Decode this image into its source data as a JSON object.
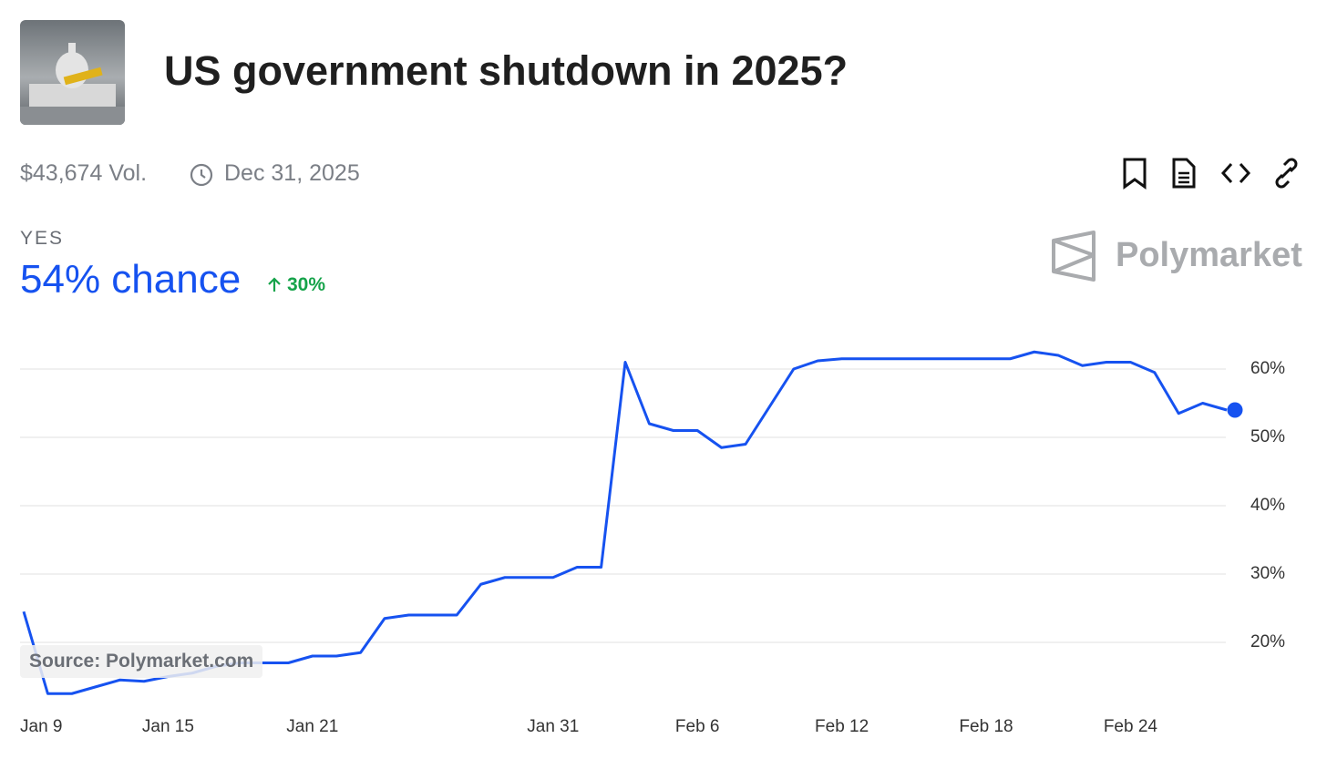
{
  "header": {
    "title": "US government shutdown in 2025?",
    "volume": "$43,674 Vol.",
    "end_date": "Dec 31, 2025",
    "outcome": "YES",
    "chance": "54% chance",
    "change": "30%",
    "brand": "Polymarket",
    "source": "Source: Polymarket.com"
  },
  "chart_data": {
    "type": "line",
    "categories": [
      "Jan 9",
      "Jan 10",
      "Jan 11",
      "Jan 12",
      "Jan 13",
      "Jan 14",
      "Jan 15",
      "Jan 16",
      "Jan 17",
      "Jan 18",
      "Jan 19",
      "Jan 20",
      "Jan 21",
      "Jan 22",
      "Jan 23",
      "Jan 24",
      "Jan 25",
      "Jan 26",
      "Jan 27",
      "Jan 28",
      "Jan 29",
      "Jan 30",
      "Jan 31",
      "Feb 1",
      "Feb 2",
      "Feb 3",
      "Feb 4",
      "Feb 5",
      "Feb 6",
      "Feb 7",
      "Feb 8",
      "Feb 9",
      "Feb 10",
      "Feb 11",
      "Feb 12",
      "Feb 13",
      "Feb 14",
      "Feb 15",
      "Feb 16",
      "Feb 17",
      "Feb 18",
      "Feb 19",
      "Feb 20",
      "Feb 21",
      "Feb 22",
      "Feb 23",
      "Feb 24",
      "Feb 25",
      "Feb 26",
      "Feb 27",
      "Feb 28"
    ],
    "series": [
      {
        "name": "YES",
        "color": "#1652f0",
        "values": [
          24.5,
          12.5,
          12.5,
          13.5,
          14.5,
          14.3,
          15,
          15.5,
          16.5,
          17,
          17,
          17,
          18,
          18,
          18.5,
          23.5,
          24,
          24,
          24,
          28.5,
          29.5,
          29.5,
          29.5,
          31,
          31,
          61,
          52,
          51,
          51,
          48.5,
          49,
          54.5,
          60,
          61.2,
          61.5,
          61.5,
          61.5,
          61.5,
          61.5,
          61.5,
          61.5,
          61.5,
          62.5,
          62,
          60.5,
          61,
          61,
          59.5,
          53.5,
          55,
          54
        ]
      }
    ],
    "xticks": [
      "Jan 9",
      "Jan 15",
      "Jan 21",
      "Jan 31",
      "Feb 6",
      "Feb 12",
      "Feb 18",
      "Feb 24"
    ],
    "ylim": [
      11,
      65
    ],
    "yticks": [
      {
        "value": 20,
        "label": "20%"
      },
      {
        "value": 30,
        "label": "30%"
      },
      {
        "value": 40,
        "label": "40%"
      },
      {
        "value": 50,
        "label": "50%"
      },
      {
        "value": 60,
        "label": "60%"
      }
    ],
    "grid": true
  }
}
